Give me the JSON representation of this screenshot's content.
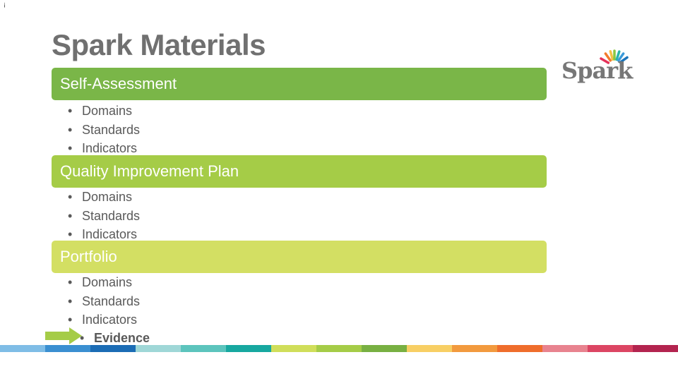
{
  "corner_mark": "¡",
  "title": "Spark Materials",
  "logo": {
    "text": "Spark",
    "colors": [
      "#e5325a",
      "#f37a2b",
      "#f6c244",
      "#8cc63f",
      "#2bb5a8",
      "#3a9ad9",
      "#1b75bb"
    ]
  },
  "sections": [
    {
      "label": "Self-Assessment",
      "color": "#7ab648",
      "items": [
        "Domains",
        "Standards",
        "Indicators"
      ]
    },
    {
      "label": "Quality Improvement Plan",
      "color": "#a5cc47",
      "items": [
        "Domains",
        "Standards",
        "Indicators"
      ]
    },
    {
      "label": "Portfolio",
      "color": "#d3df63",
      "items": [
        "Domains",
        "Standards",
        "Indicators"
      ],
      "sub_items": [
        "Evidence"
      ]
    }
  ],
  "bullet_glyph": "•",
  "arrow": {
    "icon": "right-arrow-icon",
    "color": "#a5cc47"
  },
  "color_strip": [
    "#7fbde6",
    "#3a8fd1",
    "#1b6cb5",
    "#9fd7d7",
    "#5cc4bd",
    "#17a8a0",
    "#d0de5a",
    "#a5cc47",
    "#78b042",
    "#f8cf64",
    "#f29a3e",
    "#ef6d2c",
    "#e8838f",
    "#dc4563",
    "#b3244f"
  ]
}
